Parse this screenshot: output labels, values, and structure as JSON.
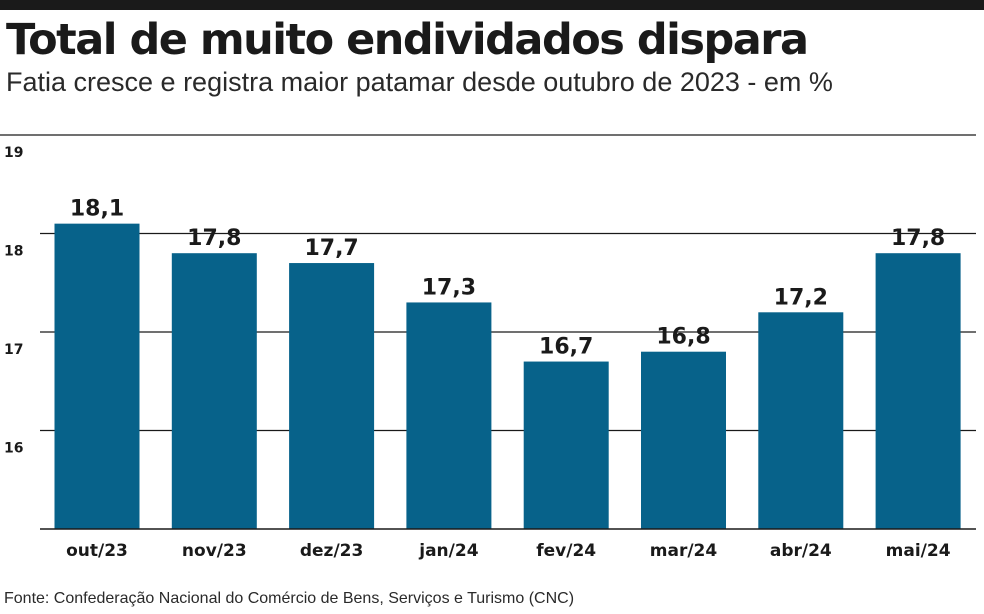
{
  "header": {
    "title": "Total de muito endividados dispara",
    "subtitle": "Fatia cresce e registra maior patamar desde outubro de 2023 - em %"
  },
  "chart_data": {
    "type": "bar",
    "title": "Total de muito endividados dispara",
    "subtitle": "Fatia cresce e registra maior patamar desde outubro de 2023 - em %",
    "categories": [
      "out/23",
      "nov/23",
      "dez/23",
      "jan/24",
      "fev/24",
      "mar/24",
      "abr/24",
      "mai/24"
    ],
    "values": [
      18.1,
      17.8,
      17.7,
      17.3,
      16.7,
      16.8,
      17.2,
      17.8
    ],
    "value_labels": [
      "18,1",
      "17,8",
      "17,7",
      "17,3",
      "16,7",
      "16,8",
      "17,2",
      "17,8"
    ],
    "y_ticks": [
      {
        "value": 19,
        "label": "19"
      },
      {
        "value": 18,
        "label": "18"
      },
      {
        "value": 17,
        "label": "17"
      },
      {
        "value": 16,
        "label": "16"
      }
    ],
    "ylim": [
      15,
      19
    ],
    "grid": true,
    "bar_color": "#07628a",
    "grid_color": "#1a1a1a"
  },
  "footer": {
    "source": "Fonte: Confederação Nacional do Comércio de Bens, Serviços e Turismo (CNC)"
  }
}
